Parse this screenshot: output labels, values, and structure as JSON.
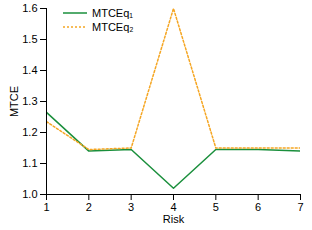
{
  "chart_data": {
    "type": "line",
    "x_label": "Risk",
    "y_label": "MTCE",
    "x": [
      1,
      2,
      3,
      4,
      5,
      6,
      7
    ],
    "series": [
      {
        "name": "MTCEq₁",
        "color": "#1a8f3c",
        "line_style": "solid",
        "values": [
          1.265,
          1.14,
          1.145,
          1.02,
          1.145,
          1.145,
          1.14
        ]
      },
      {
        "name": "MTCEq₂",
        "color": "#f5a623",
        "line_style": "dotted",
        "values": [
          1.235,
          1.145,
          1.15,
          1.6,
          1.15,
          1.15,
          1.15
        ]
      }
    ],
    "xlim": [
      1,
      7
    ],
    "xticks": [
      1,
      2,
      3,
      4,
      5,
      6,
      7
    ],
    "ylim": [
      1,
      1.6
    ],
    "yticks": [
      {
        "value": 1,
        "label": "1.0"
      },
      1.1,
      1.2,
      1.3,
      1.4,
      1.5,
      1.6
    ],
    "grid": false,
    "legend": "upper left"
  }
}
